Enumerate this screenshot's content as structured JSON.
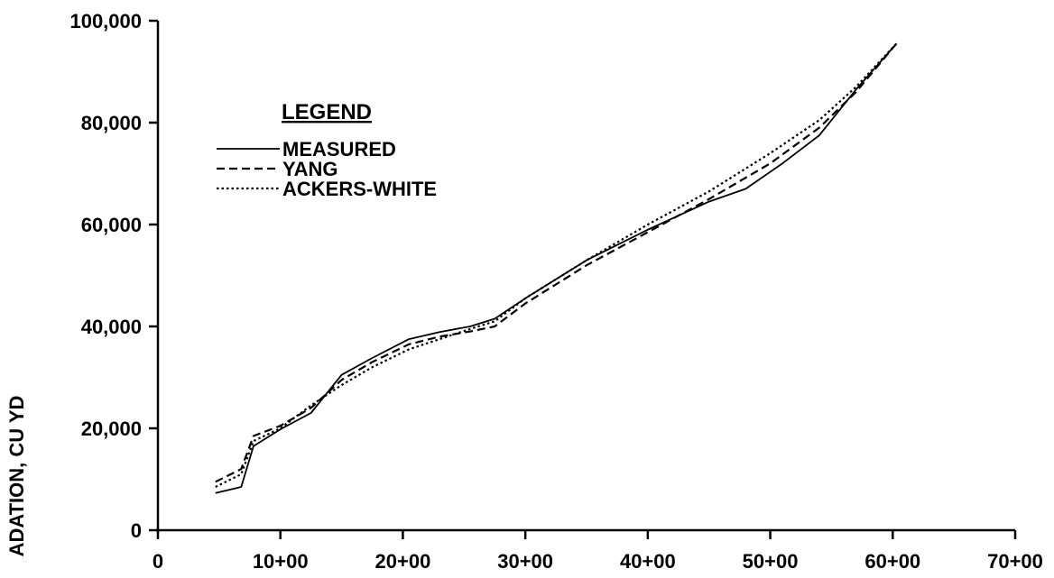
{
  "chart_data": {
    "type": "line",
    "title": "",
    "xlabel": "",
    "ylabel": "ADATION, CU YD",
    "xlim": [
      0,
      70
    ],
    "ylim": [
      0,
      100000
    ],
    "x_ticks": [
      {
        "value": 0,
        "label": "0"
      },
      {
        "value": 10,
        "label": "10+00"
      },
      {
        "value": 20,
        "label": "20+00"
      },
      {
        "value": 30,
        "label": "30+00"
      },
      {
        "value": 40,
        "label": "40+00"
      },
      {
        "value": 50,
        "label": "50+00"
      },
      {
        "value": 60,
        "label": "60+00"
      },
      {
        "value": 70,
        "label": "70+00"
      }
    ],
    "y_ticks": [
      {
        "value": 0,
        "label": "0"
      },
      {
        "value": 20000,
        "label": "20,000"
      },
      {
        "value": 40000,
        "label": "40,000"
      },
      {
        "value": 60000,
        "label": "60,000"
      },
      {
        "value": 80000,
        "label": "80,000"
      },
      {
        "value": 100000,
        "label": "100,000"
      }
    ],
    "grid": false,
    "legend": {
      "title": "LEGEND",
      "position": "top-left"
    },
    "series": [
      {
        "name": "MEASURED",
        "style": "solid",
        "color": "#000000",
        "x": [
          4.7,
          6.8,
          7.8,
          10,
          12.5,
          15,
          17.5,
          20.5,
          23,
          25.5,
          27.5,
          30,
          35,
          40,
          45,
          48,
          51,
          54,
          57,
          60.3
        ],
        "y": [
          7300,
          8500,
          16500,
          19800,
          23000,
          30500,
          33800,
          37500,
          38900,
          40000,
          41500,
          45500,
          53000,
          59000,
          64500,
          67000,
          72000,
          77500,
          86500,
          95500
        ]
      },
      {
        "name": "YANG",
        "style": "dashed",
        "color": "#000000",
        "x": [
          4.7,
          6.8,
          7.8,
          10,
          12.5,
          15,
          17.5,
          20.5,
          23,
          25.5,
          27.5,
          30,
          35,
          40,
          45,
          50,
          54,
          57,
          60.3
        ],
        "y": [
          9500,
          12000,
          18500,
          20500,
          24000,
          29500,
          33000,
          36500,
          38000,
          39000,
          40000,
          44500,
          52000,
          58500,
          65000,
          72000,
          79000,
          86000,
          95500
        ]
      },
      {
        "name": "ACKERS-WHITE",
        "style": "dotted",
        "color": "#000000",
        "x": [
          4.7,
          6.8,
          7.8,
          10,
          12.5,
          15,
          17.5,
          20.5,
          23,
          25.5,
          27.5,
          30,
          35,
          40,
          45,
          50,
          54,
          57,
          60.3
        ],
        "y": [
          8500,
          11000,
          17500,
          20000,
          24500,
          28500,
          32000,
          35500,
          37500,
          39500,
          41000,
          45500,
          53000,
          60000,
          66500,
          74000,
          80500,
          87000,
          95500
        ]
      }
    ]
  }
}
